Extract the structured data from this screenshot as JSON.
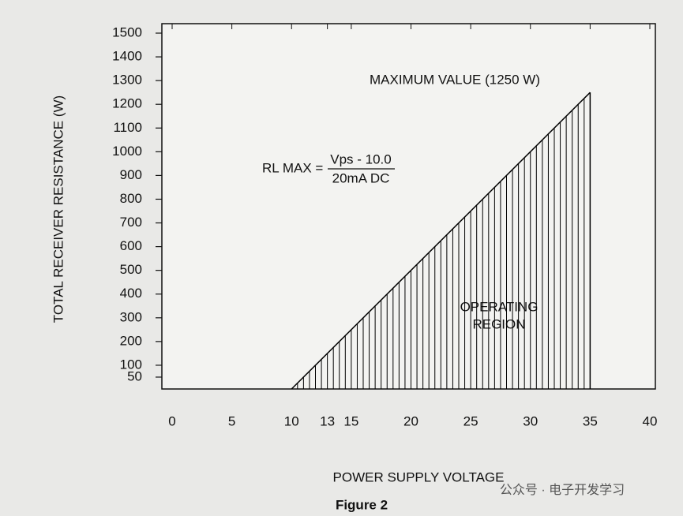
{
  "chart_data": {
    "type": "line",
    "title": "Figure 2",
    "x_label": "POWER SUPPLY VOLTAGE",
    "y_label": "TOTAL RECEIVER RESISTANCE (W)",
    "x": [
      10,
      35
    ],
    "values": [
      0,
      1250
    ],
    "color": "#000000",
    "hatched": true,
    "xlim": [
      0,
      40
    ],
    "xticks": [
      0,
      5,
      10,
      13,
      15,
      20,
      25,
      30,
      35,
      40
    ],
    "ylim": [
      0,
      1500
    ],
    "yticks": [
      50,
      100,
      200,
      300,
      400,
      500,
      600,
      700,
      800,
      900,
      1000,
      1100,
      1200,
      1300,
      1400,
      1500
    ],
    "annotations": {
      "max_value": "MAXIMUM VALUE (1250 W)",
      "formula_lhs": "RL MAX =",
      "formula_numerator": "Vps - 10.0",
      "formula_denominator": "20mA DC",
      "region_line1": "OPERATING",
      "region_line2": "REGION"
    },
    "watermark": "公众号 · 电子开发学习"
  }
}
